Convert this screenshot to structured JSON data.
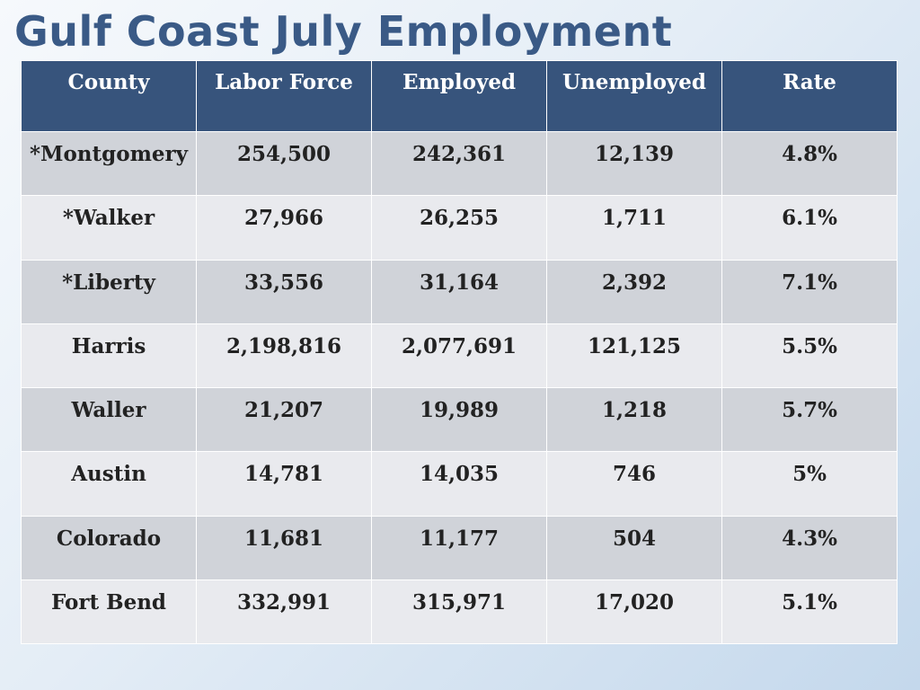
{
  "title": "Gulf Coast July Employment",
  "table": {
    "headers": {
      "county": "County",
      "labor_force": "Labor Force",
      "employed": "Employed",
      "unemployed": "Unemployed",
      "rate": "Rate"
    },
    "rows": [
      {
        "county": "*Montgomery",
        "labor_force": "254,500",
        "employed": "242,361",
        "unemployed": "12,139",
        "rate": "4.8%"
      },
      {
        "county": "*Walker",
        "labor_force": "27,966",
        "employed": "26,255",
        "unemployed": "1,711",
        "rate": "6.1%"
      },
      {
        "county": "*Liberty",
        "labor_force": "33,556",
        "employed": "31,164",
        "unemployed": "2,392",
        "rate": "7.1%"
      },
      {
        "county": "Harris",
        "labor_force": "2,198,816",
        "employed": "2,077,691",
        "unemployed": "121,125",
        "rate": "5.5%"
      },
      {
        "county": "Waller",
        "labor_force": "21,207",
        "employed": "19,989",
        "unemployed": "1,218",
        "rate": "5.7%"
      },
      {
        "county": "Austin",
        "labor_force": "14,781",
        "employed": "14,035",
        "unemployed": "746",
        "rate": "5%"
      },
      {
        "county": "Colorado",
        "labor_force": "11,681",
        "employed": "11,177",
        "unemployed": "504",
        "rate": "4.3%"
      },
      {
        "county": "Fort Bend",
        "labor_force": "332,991",
        "employed": "315,971",
        "unemployed": "17,020",
        "rate": "5.1%"
      }
    ]
  },
  "colors": {
    "title": "#3a5a86",
    "header_bg": "#37547c",
    "row_dark": "#d0d3d9",
    "row_light": "#e9eaee"
  }
}
